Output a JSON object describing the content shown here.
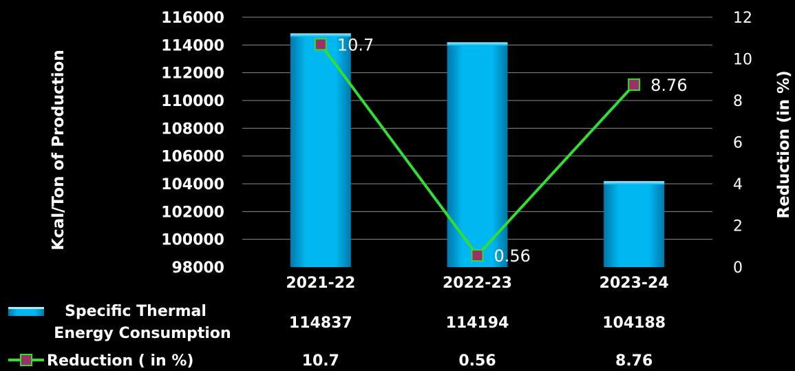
{
  "chart_data": {
    "type": "bar",
    "categories": [
      "2021-22",
      "2022-23",
      "2023-24"
    ],
    "series": [
      {
        "name": "Specific Thermal Energy Consumption",
        "type": "bar",
        "axis": "left",
        "color": "#00b4ee",
        "values": [
          114837,
          114194,
          104188
        ]
      },
      {
        "name": "Reduction ( in %)",
        "type": "line",
        "axis": "right",
        "line_color": "#33dd33",
        "marker_color": "#993366",
        "values": [
          10.7,
          0.56,
          8.76
        ],
        "data_labels": [
          "10.7",
          "0.56",
          "8.76"
        ]
      }
    ],
    "ylabel": "Kcal/Ton of Production",
    "y2label": "Reduction (in %)",
    "ylim": [
      98000,
      116000
    ],
    "y2lim": [
      0,
      12
    ],
    "yticks": [
      "98000",
      "100000",
      "102000",
      "104000",
      "106000",
      "108000",
      "110000",
      "112000",
      "114000",
      "116000"
    ],
    "y2ticks": [
      "0",
      "2",
      "4",
      "6",
      "8",
      "10",
      "12"
    ],
    "grid": true,
    "background": "#000000",
    "data_table": {
      "rows": [
        {
          "label_lines": [
            "Specific Thermal",
            "Energy Consumption"
          ],
          "values": [
            "114837",
            "114194",
            "104188"
          ]
        },
        {
          "label_lines": [
            "Reduction ( in %)"
          ],
          "values": [
            "10.7",
            "0.56",
            "8.76"
          ]
        }
      ]
    }
  }
}
